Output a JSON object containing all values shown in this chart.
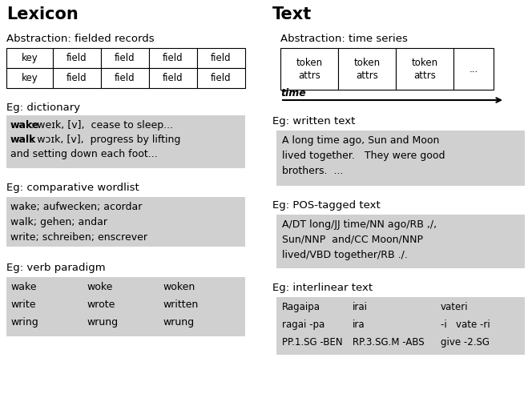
{
  "bg_color": "#ffffff",
  "gray_box_color": "#d0d0d0",
  "left_title": "Lexicon",
  "right_title": "Text",
  "left_abstraction": "Abstraction: fielded records",
  "right_abstraction": "Abstraction: time series",
  "left_table": [
    [
      "key",
      "field",
      "field",
      "field",
      "field"
    ],
    [
      "key",
      "field",
      "field",
      "field",
      "field"
    ]
  ],
  "right_table": [
    [
      "token\nattrs",
      "token\nattrs",
      "token\nattrs",
      "..."
    ]
  ],
  "time_label": "time",
  "dict_label": "Eg: dictionary",
  "dict_line1_bold": "wake",
  "dict_line1_rest": ": weɪk, [v],  cease to sleep...",
  "dict_line2_bold": "walk",
  "dict_line2_rest": ": wɔɪk, [v],  progress by lifting",
  "dict_line3": "and setting down each foot...",
  "written_label": "Eg: written text",
  "written_content": "A long time ago, Sun and Moon\nlived together.   They were good\nbrothers.  ...",
  "wordlist_label": "Eg: comparative wordlist",
  "wordlist_content": "wake; aufwecken; acordar\nwalk; gehen; andar\nwrite; schreiben; enscrever",
  "pos_label": "Eg: POS-tagged text",
  "pos_content": "A/DT long/JJ time/NN ago/RB ,/,\nSun/NNP  and/CC Moon/NNP\nlived/VBD together/RB ./.",
  "paradigm_label": "Eg: verb paradigm",
  "paradigm_lines": [
    [
      "wake",
      "woke",
      "woken"
    ],
    [
      "write",
      "wrote",
      "written"
    ],
    [
      "wring",
      "wrung",
      "wrung"
    ]
  ],
  "interlinear_label": "Eg: interlinear text",
  "interlinear_lines": [
    [
      "Ragaipa",
      "irai",
      "vateri"
    ],
    [
      "ragai -pa",
      "ira",
      "-i   vate -ri"
    ],
    [
      "PP.1.SG -BEN",
      "RP.3.SG.M -ABS",
      "give -2.SG"
    ]
  ]
}
